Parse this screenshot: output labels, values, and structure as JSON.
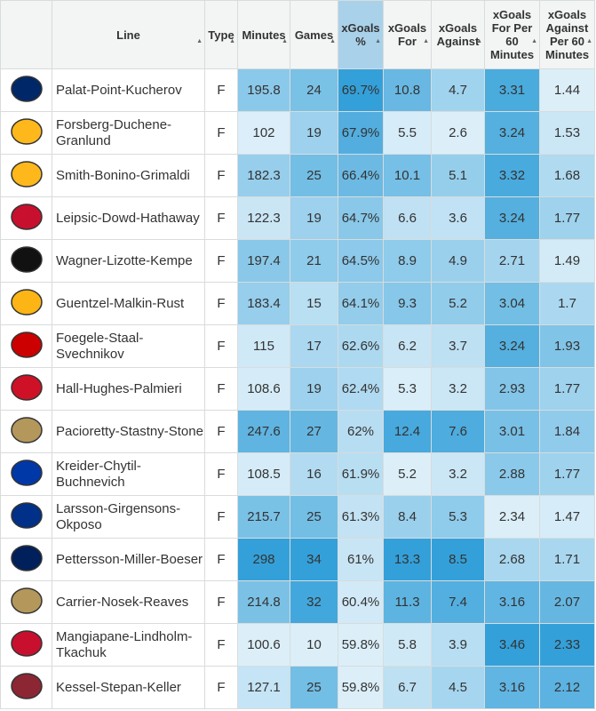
{
  "table": {
    "headers": [
      "Line",
      "Type",
      "Minutes",
      "Games",
      "xGoals %",
      "xGoals For",
      "xGoals Against",
      "xGoals For Per 60 Minutes",
      "xGoals Against Per 60 Minutes"
    ],
    "rows": [
      [
        "Palat-Point-Kucherov",
        "F",
        "195.8",
        "24",
        "69.7%",
        "10.8",
        "4.7",
        "3.31",
        "1.44"
      ],
      [
        "Forsberg-Duchene-Granlund",
        "F",
        "102",
        "19",
        "67.9%",
        "5.5",
        "2.6",
        "3.24",
        "1.53"
      ],
      [
        "Smith-Bonino-Grimaldi",
        "F",
        "182.3",
        "25",
        "66.4%",
        "10.1",
        "5.1",
        "3.32",
        "1.68"
      ],
      [
        "Leipsic-Dowd-Hathaway",
        "F",
        "122.3",
        "19",
        "64.7%",
        "6.6",
        "3.6",
        "3.24",
        "1.77"
      ],
      [
        "Wagner-Lizotte-Kempe",
        "F",
        "197.4",
        "21",
        "64.5%",
        "8.9",
        "4.9",
        "2.71",
        "1.49"
      ],
      [
        "Guentzel-Malkin-Rust",
        "F",
        "183.4",
        "15",
        "64.1%",
        "9.3",
        "5.2",
        "3.04",
        "1.7"
      ],
      [
        "Foegele-Staal-Svechnikov",
        "F",
        "115",
        "17",
        "62.6%",
        "6.2",
        "3.7",
        "3.24",
        "1.93"
      ],
      [
        "Hall-Hughes-Palmieri",
        "F",
        "108.6",
        "19",
        "62.4%",
        "5.3",
        "3.2",
        "2.93",
        "1.77"
      ],
      [
        "Pacioretty-Stastny-Stone",
        "F",
        "247.6",
        "27",
        "62%",
        "12.4",
        "7.6",
        "3.01",
        "1.84"
      ],
      [
        "Kreider-Chytil-Buchnevich",
        "F",
        "108.5",
        "16",
        "61.9%",
        "5.2",
        "3.2",
        "2.88",
        "1.77"
      ],
      [
        "Larsson-Girgensons-Okposo",
        "F",
        "215.7",
        "25",
        "61.3%",
        "8.4",
        "5.3",
        "2.34",
        "1.47"
      ],
      [
        "Pettersson-Miller-Boeser",
        "F",
        "298",
        "34",
        "61%",
        "13.3",
        "8.5",
        "2.68",
        "1.71"
      ],
      [
        "Carrier-Nosek-Reaves",
        "F",
        "214.8",
        "32",
        "60.4%",
        "11.3",
        "7.4",
        "3.16",
        "2.07"
      ],
      [
        "Mangiapane-Lindholm-Tkachuk",
        "F",
        "100.6",
        "10",
        "59.8%",
        "5.8",
        "3.9",
        "3.46",
        "2.33"
      ],
      [
        "Kessel-Stepan-Keller",
        "F",
        "127.1",
        "25",
        "59.8%",
        "6.7",
        "4.5",
        "3.16",
        "2.12"
      ]
    ]
  }
}
